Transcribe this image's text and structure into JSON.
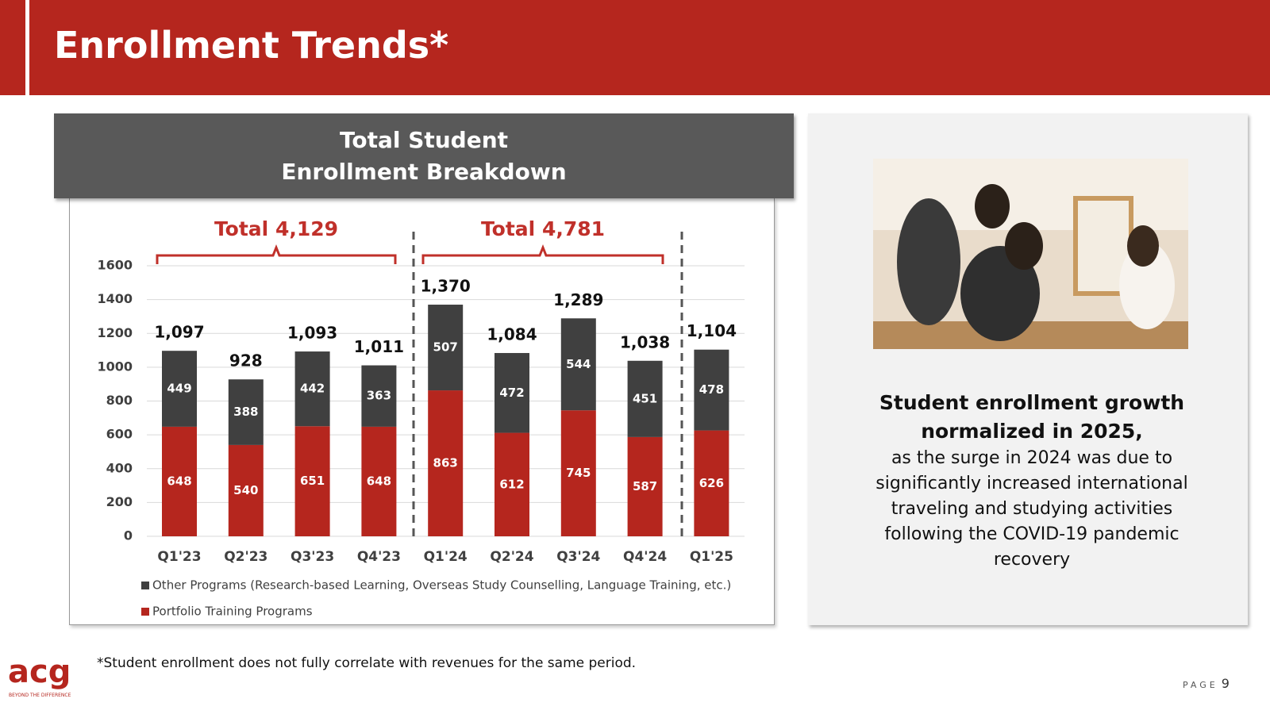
{
  "header": {
    "title": "Enrollment Trends*"
  },
  "chart_data": {
    "type": "stacked_bar",
    "title": "Total Student Enrollment Breakdown",
    "categories": [
      "Q1'23",
      "Q2'23",
      "Q3'23",
      "Q4'23",
      "Q1'24",
      "Q2'24",
      "Q3'24",
      "Q4'24",
      "Q1'25"
    ],
    "series": [
      {
        "name": "Portfolio Training Programs",
        "color": "#b5261e",
        "values": [
          648,
          540,
          651,
          648,
          863,
          612,
          745,
          587,
          626
        ]
      },
      {
        "name": "Other Programs (Research-based Learning, Overseas Study Counselling, Language Training, etc.)",
        "color": "#404040",
        "values": [
          449,
          388,
          442,
          363,
          507,
          472,
          544,
          451,
          478
        ]
      }
    ],
    "totals": {
      "values": [
        1097,
        928,
        1093,
        1011,
        1370,
        1084,
        1289,
        1038,
        1104
      ],
      "value_labels": [
        "1,097",
        "928",
        "1,093",
        "1,011",
        "1,370",
        "1,084",
        "1,289",
        "1,038",
        "1,104"
      ]
    },
    "annotations": [
      "Total 4,129",
      "Total 4,781"
    ],
    "ylim": [
      0,
      1600
    ],
    "yticks": [
      0,
      200,
      400,
      600,
      800,
      1000,
      1200,
      1400,
      1600
    ],
    "grid": true
  },
  "side_panel": {
    "heading": "Student enrollment growth normalized in 2025,",
    "body": "as the surge in 2024 was due to significantly increased international traveling and studying activities following the COVID-19 pandemic recovery"
  },
  "footnote": "*Student enrollment does not fully correlate with revenues for the same period.",
  "logo": {
    "name": "acg",
    "tagline": "BEYOND THE DIFFERENCE"
  },
  "page": {
    "label": "PAGE",
    "number": "9"
  }
}
